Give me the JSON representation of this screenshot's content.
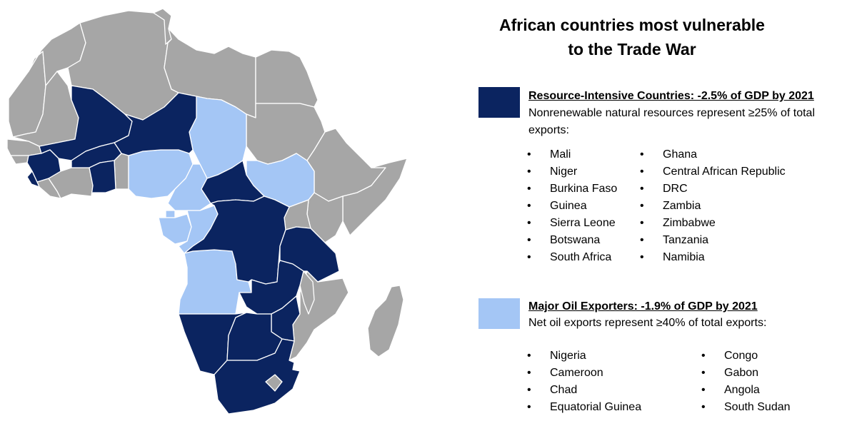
{
  "title": {
    "line1": "African countries most vulnerable",
    "line2": "to the Trade War"
  },
  "colors": {
    "resource": "#0b2460",
    "oil": "#a4c6f5",
    "other": "#a6a6a6",
    "border": "#ffffff"
  },
  "groups": [
    {
      "key": "resource",
      "heading": "Resource-Intensive Countries: -2.5% of GDP by 2021",
      "description": "Nonrenewable natural resources represent ≥25% of total exports:",
      "col1": [
        "Mali",
        "Niger",
        "Burkina Faso",
        "Guinea",
        "Sierra Leone",
        "Botswana",
        "South Africa"
      ],
      "col2": [
        "Ghana",
        "Central African Republic",
        "DRC",
        "Zambia",
        "Zimbabwe",
        "Tanzania",
        "Namibia"
      ]
    },
    {
      "key": "oil",
      "heading": "Major Oil Exporters: -1.9% of GDP by 2021",
      "description": "Net oil exports represent ≥40% of total exports:",
      "col1": [
        "Nigeria",
        "Cameroon",
        "Chad",
        "Equatorial Guinea"
      ],
      "col2": [
        "Congo",
        "Gabon",
        "Angola",
        "South Sudan"
      ]
    }
  ]
}
